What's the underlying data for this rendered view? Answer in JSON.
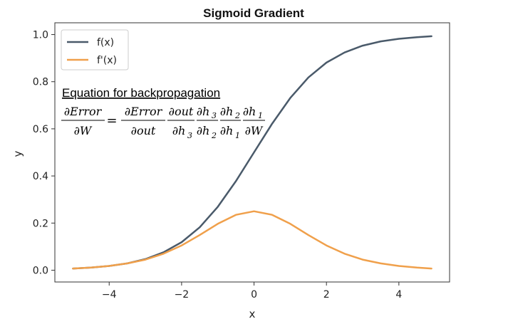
{
  "chart_data": {
    "type": "line",
    "title": "Sigmoid Gradient",
    "xlabel": "x",
    "ylabel": "y",
    "xlim": [
      -5.5,
      5.4
    ],
    "ylim": [
      -0.05,
      1.05
    ],
    "xticks": [
      -4,
      -2,
      0,
      2,
      4
    ],
    "xtick_labels": [
      "−4",
      "−2",
      "0",
      "2",
      "4"
    ],
    "yticks": [
      0.0,
      0.2,
      0.4,
      0.6,
      0.8,
      1.0
    ],
    "ytick_labels": [
      "0.0",
      "0.2",
      "0.4",
      "0.6",
      "0.8",
      "1.0"
    ],
    "legend_position": "top-left",
    "grid": false,
    "series": [
      {
        "name": "f(x)",
        "color": "#4a5a6a",
        "x": [
          -5,
          -4.5,
          -4,
          -3.5,
          -3,
          -2.5,
          -2,
          -1.5,
          -1,
          -0.5,
          0,
          0.5,
          1,
          1.5,
          2,
          2.5,
          3,
          3.5,
          4,
          4.5,
          4.9
        ],
        "values": [
          0.007,
          0.011,
          0.018,
          0.029,
          0.047,
          0.076,
          0.119,
          0.182,
          0.269,
          0.378,
          0.5,
          0.622,
          0.731,
          0.818,
          0.881,
          0.924,
          0.953,
          0.971,
          0.982,
          0.989,
          0.993
        ]
      },
      {
        "name": "f'(x)",
        "color": "#f0a04b",
        "x": [
          -5,
          -4.5,
          -4,
          -3.5,
          -3,
          -2.5,
          -2,
          -1.5,
          -1,
          -0.5,
          0,
          0.5,
          1,
          1.5,
          2,
          2.5,
          3,
          3.5,
          4,
          4.5,
          4.9
        ],
        "values": [
          0.007,
          0.011,
          0.018,
          0.029,
          0.045,
          0.07,
          0.105,
          0.149,
          0.197,
          0.235,
          0.25,
          0.235,
          0.197,
          0.149,
          0.105,
          0.07,
          0.045,
          0.029,
          0.018,
          0.011,
          0.007
        ]
      }
    ],
    "annotations": {
      "equation_heading": "Equation for backpropagation",
      "lhs_num": "∂Error",
      "lhs_den": "∂W",
      "equals": "=",
      "f1_num": "∂Error",
      "f1_den": "∂out",
      "f2_num": "∂out",
      "f2_den": "∂h",
      "f2_den_sub": "3",
      "f3_num": "∂h",
      "f3_num_sub": "3",
      "f3_den": "∂h",
      "f3_den_sub": "2",
      "f4_num": "∂h",
      "f4_num_sub": "2",
      "f4_den": "∂h",
      "f4_den_sub": "1",
      "f5_num": "∂h",
      "f5_num_sub": "1",
      "f5_den": "∂W"
    }
  }
}
